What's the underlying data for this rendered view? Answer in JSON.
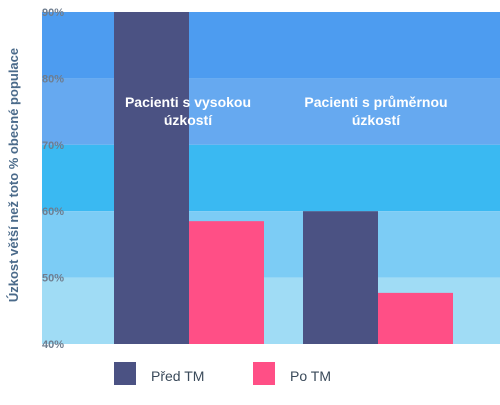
{
  "chart_data": {
    "type": "bar",
    "title": "",
    "xlabel": "",
    "ylabel": "Úzkost větší než toto % obecné populace",
    "ylim": [
      40,
      90
    ],
    "yticks": [
      {
        "value": 40,
        "label": "40%"
      },
      {
        "value": 50,
        "label": "50%"
      },
      {
        "value": 60,
        "label": "60%"
      },
      {
        "value": 70,
        "label": "70%"
      },
      {
        "value": 80,
        "label": "80%"
      },
      {
        "value": 90,
        "label": "90%"
      }
    ],
    "categories": [
      [
        "Pacienti s vysokou",
        "úzkostí"
      ],
      [
        "Pacienti s průměrnou",
        "úzkostí"
      ]
    ],
    "series": [
      {
        "name": "Před TM",
        "color": "#4b5283",
        "values": [
          90,
          60
        ]
      },
      {
        "name": "Po TM",
        "color": "#ff4f86",
        "values": [
          58.5,
          47.7
        ]
      }
    ],
    "background_bands": [
      {
        "from": 80,
        "to": 90,
        "color": "#4d9cf0"
      },
      {
        "from": 70,
        "to": 80,
        "color": "#66a9f0"
      },
      {
        "from": 60,
        "to": 70,
        "color": "#3ab9f2"
      },
      {
        "from": 50,
        "to": 60,
        "color": "#7cccf5"
      },
      {
        "from": 40,
        "to": 50,
        "color": "#a0dcf5"
      }
    ],
    "legend_placement": "bottom",
    "grid": false
  }
}
